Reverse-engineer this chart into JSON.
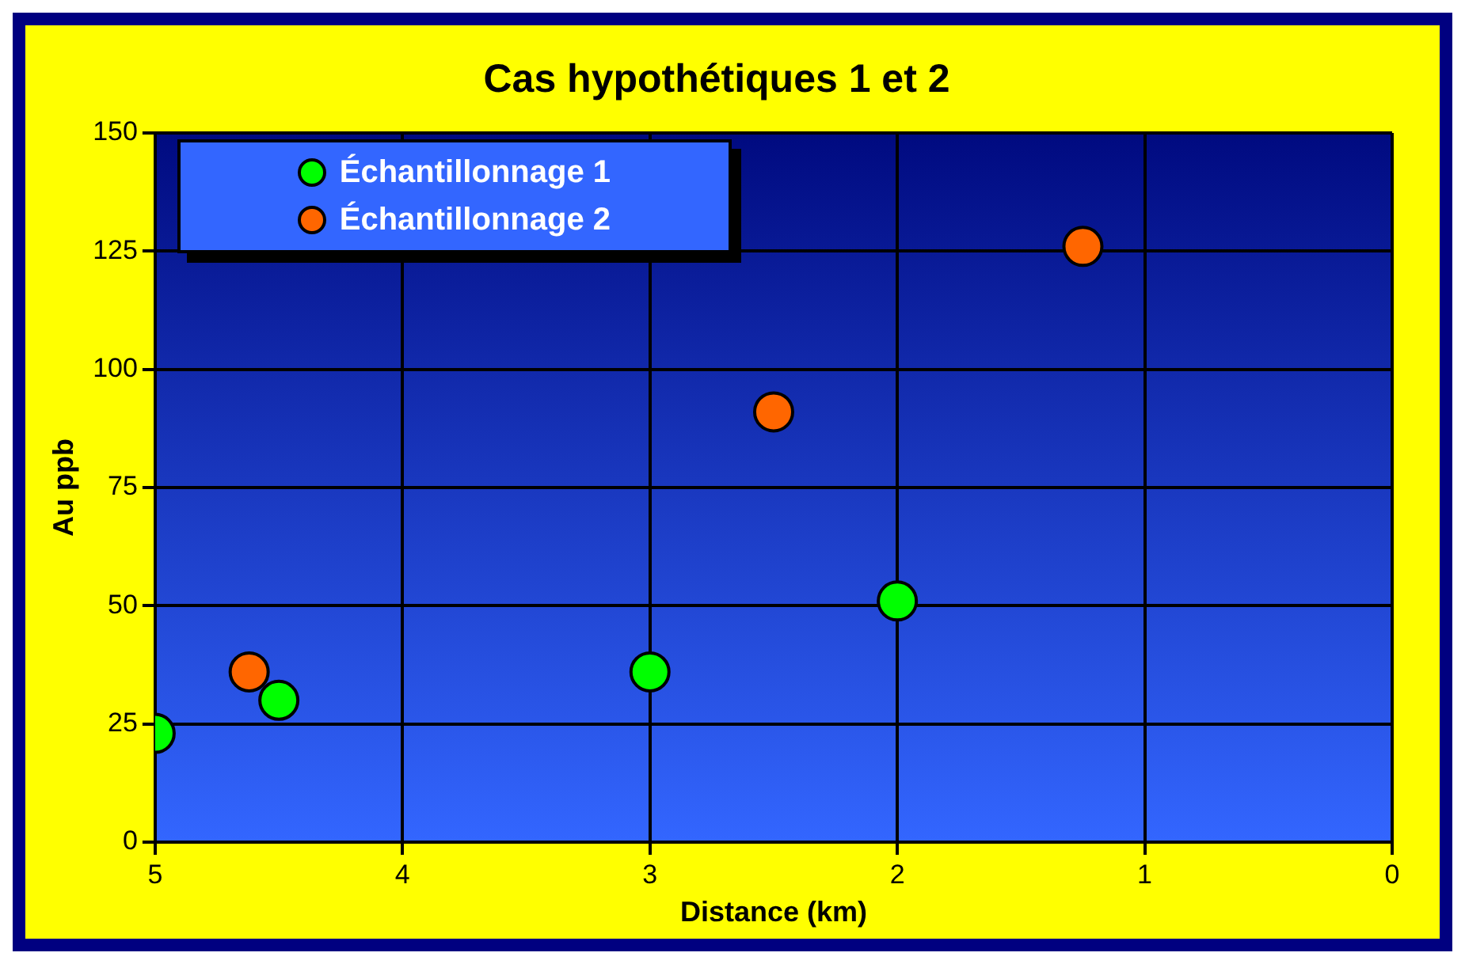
{
  "chart_data": {
    "type": "scatter",
    "title": "Cas hypothétiques 1 et 2",
    "xlabel": "Distance (km)",
    "ylabel": "Au ppb",
    "xlim": [
      5,
      0
    ],
    "xticks": [
      5,
      4,
      3,
      2,
      1,
      0
    ],
    "ylim": [
      0,
      150
    ],
    "yticks": [
      0,
      25,
      50,
      75,
      100,
      125,
      150
    ],
    "grid": true,
    "legend": "top left",
    "marker": "circle",
    "series": [
      {
        "name": "Échantillonnage 1",
        "color": "#00ff00",
        "x": [
          5.0,
          4.5,
          3.0,
          2.0
        ],
        "values": [
          23,
          30,
          36,
          51
        ]
      },
      {
        "name": "Échantillonnage 2",
        "color": "#ff6600",
        "x": [
          4.62,
          2.5,
          1.25
        ],
        "values": [
          36,
          91,
          126
        ]
      }
    ]
  }
}
